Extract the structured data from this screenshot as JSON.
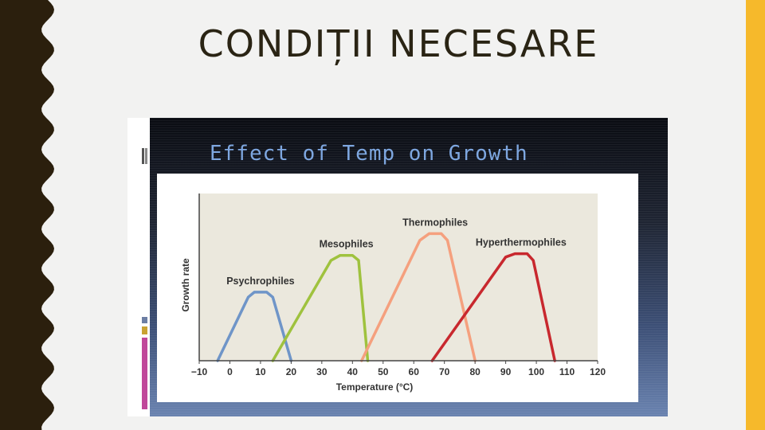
{
  "slide": {
    "title": "CONDIȚII NECESARE"
  },
  "figure": {
    "title": "Effect of Temp on Growth"
  },
  "colors": {
    "accent_bar": "#f6b92b",
    "left_border": "#2b1f0d",
    "inner_title": "#7ea7e0",
    "plot_background": "#ebe8dd"
  },
  "chart_data": {
    "type": "line",
    "title": "Effect of Temp on Growth",
    "xlabel": "Temperature (°C)",
    "ylabel": "Growth rate",
    "xlim": [
      -10,
      120
    ],
    "ylim": [
      0,
      1
    ],
    "x_ticks": [
      -10,
      0,
      10,
      20,
      30,
      40,
      50,
      60,
      70,
      80,
      90,
      100,
      110,
      120
    ],
    "grid": false,
    "legend": "labels placed above each curve",
    "series": [
      {
        "name": "Psychrophiles",
        "color": "#6f95c8",
        "points": [
          [
            -4,
            0
          ],
          [
            6,
            0.38
          ],
          [
            8,
            0.41
          ],
          [
            12,
            0.41
          ],
          [
            14,
            0.38
          ],
          [
            20,
            0
          ]
        ]
      },
      {
        "name": "Mesophiles",
        "color": "#9fc23e",
        "points": [
          [
            14,
            0
          ],
          [
            33,
            0.6
          ],
          [
            36,
            0.63
          ],
          [
            40,
            0.63
          ],
          [
            42,
            0.6
          ],
          [
            45,
            0
          ]
        ]
      },
      {
        "name": "Thermophiles",
        "color": "#f5a07e",
        "points": [
          [
            43,
            0
          ],
          [
            62,
            0.72
          ],
          [
            65,
            0.76
          ],
          [
            69,
            0.76
          ],
          [
            71,
            0.72
          ],
          [
            80,
            0
          ]
        ]
      },
      {
        "name": "Hyperthermophiles",
        "color": "#c8282e",
        "points": [
          [
            66,
            0
          ],
          [
            90,
            0.62
          ],
          [
            93,
            0.64
          ],
          [
            97,
            0.64
          ],
          [
            99,
            0.6
          ],
          [
            106,
            0
          ]
        ]
      }
    ]
  }
}
